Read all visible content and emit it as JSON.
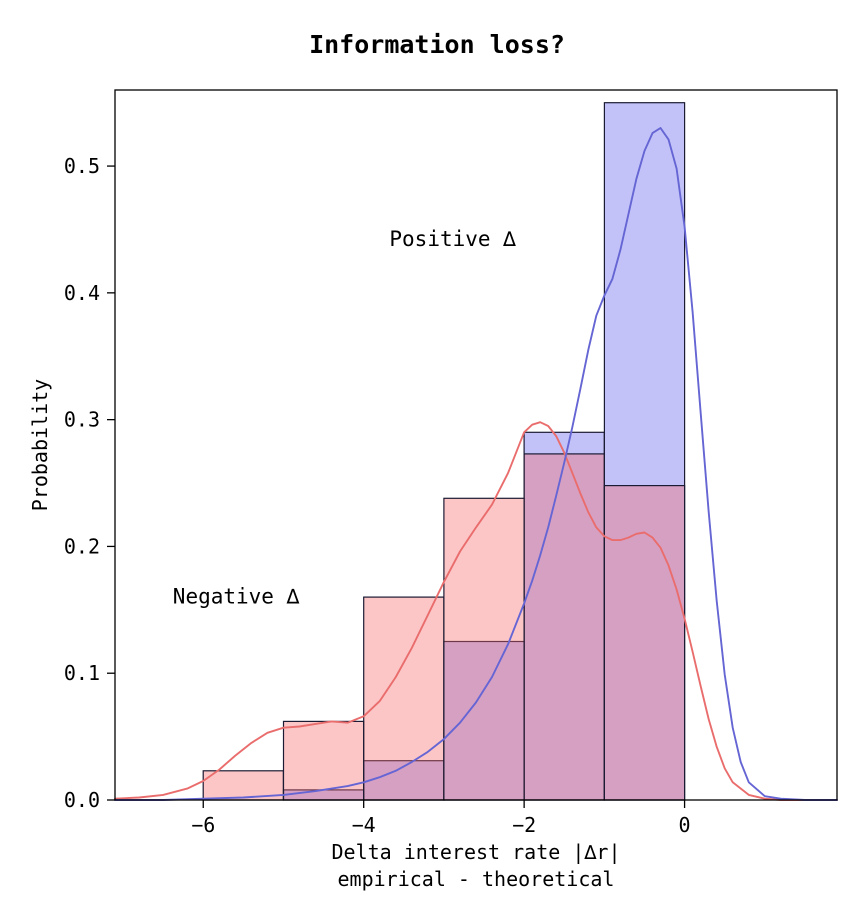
{
  "title": "Information loss?",
  "axes": {
    "ylabel": "Probability",
    "xlabel_line1": "Delta interest rate |∆r|",
    "xlabel_line2": "empirical - theoretical",
    "xlim": [
      -7.1,
      1.9
    ],
    "ylim": [
      0,
      0.56
    ],
    "xtick_values": [
      -6,
      -4,
      -2,
      0
    ],
    "xtick_labels": [
      "−6",
      "−4",
      "−2",
      "0"
    ],
    "ytick_values": [
      0.0,
      0.1,
      0.2,
      0.3,
      0.4,
      0.5
    ],
    "ytick_labels": [
      "0.0",
      "0.1",
      "0.2",
      "0.3",
      "0.4",
      "0.5"
    ],
    "spine_color": "#000000",
    "bar_edge_color": "#1b1b33"
  },
  "chart_data": {
    "type": "histogram+kde",
    "series": [
      {
        "id": "positive",
        "name": "Positive ∆",
        "bar_fill": "rgba(95,95,240,0.38)",
        "line_color": "#6565d4",
        "bin_edges": [
          -5,
          -4,
          -3,
          -2,
          -1,
          0
        ],
        "bin_values": [
          0.008,
          0.031,
          0.125,
          0.29,
          0.55
        ],
        "kde_x": [
          -7.1,
          -6.5,
          -6.0,
          -5.5,
          -5.0,
          -4.6,
          -4.2,
          -4.0,
          -3.8,
          -3.6,
          -3.4,
          -3.2,
          -3.0,
          -2.8,
          -2.6,
          -2.4,
          -2.2,
          -2.0,
          -1.9,
          -1.8,
          -1.7,
          -1.6,
          -1.5,
          -1.4,
          -1.3,
          -1.2,
          -1.1,
          -1.0,
          -0.9,
          -0.8,
          -0.7,
          -0.6,
          -0.5,
          -0.4,
          -0.3,
          -0.2,
          -0.1,
          0.0,
          0.1,
          0.2,
          0.3,
          0.4,
          0.5,
          0.6,
          0.7,
          0.8,
          1.0,
          1.2,
          1.5,
          1.9
        ],
        "kde_y": [
          0.0,
          0.0,
          0.001,
          0.002,
          0.004,
          0.007,
          0.011,
          0.014,
          0.018,
          0.023,
          0.03,
          0.038,
          0.048,
          0.061,
          0.077,
          0.097,
          0.123,
          0.155,
          0.173,
          0.193,
          0.215,
          0.24,
          0.266,
          0.294,
          0.324,
          0.355,
          0.382,
          0.398,
          0.411,
          0.434,
          0.462,
          0.49,
          0.512,
          0.526,
          0.53,
          0.521,
          0.498,
          0.452,
          0.385,
          0.306,
          0.228,
          0.157,
          0.099,
          0.057,
          0.03,
          0.014,
          0.003,
          0.001,
          0.0,
          0.0
        ]
      },
      {
        "id": "negative",
        "name": "Negative ∆",
        "bar_fill": "rgba(248,105,107,0.38)",
        "line_color": "#ea6d6d",
        "bin_edges": [
          -6,
          -5,
          -4,
          -3,
          -2,
          -1,
          0
        ],
        "bin_values": [
          0.023,
          0.062,
          0.16,
          0.238,
          0.273,
          0.248
        ],
        "kde_x": [
          -7.1,
          -6.8,
          -6.5,
          -6.2,
          -6.0,
          -5.8,
          -5.6,
          -5.4,
          -5.2,
          -5.0,
          -4.8,
          -4.6,
          -4.4,
          -4.2,
          -4.0,
          -3.8,
          -3.6,
          -3.4,
          -3.2,
          -3.0,
          -2.8,
          -2.6,
          -2.4,
          -2.2,
          -2.0,
          -1.9,
          -1.8,
          -1.7,
          -1.6,
          -1.5,
          -1.4,
          -1.3,
          -1.2,
          -1.1,
          -1.0,
          -0.9,
          -0.8,
          -0.7,
          -0.6,
          -0.5,
          -0.4,
          -0.3,
          -0.2,
          -0.1,
          0.0,
          0.1,
          0.2,
          0.3,
          0.4,
          0.5,
          0.6,
          0.8,
          1.0,
          1.2,
          1.5,
          1.9
        ],
        "kde_y": [
          0.001,
          0.002,
          0.004,
          0.009,
          0.015,
          0.024,
          0.035,
          0.045,
          0.053,
          0.057,
          0.058,
          0.06,
          0.062,
          0.061,
          0.066,
          0.078,
          0.097,
          0.12,
          0.146,
          0.172,
          0.196,
          0.215,
          0.233,
          0.258,
          0.29,
          0.296,
          0.298,
          0.295,
          0.287,
          0.274,
          0.258,
          0.242,
          0.227,
          0.215,
          0.208,
          0.205,
          0.205,
          0.207,
          0.21,
          0.211,
          0.207,
          0.199,
          0.185,
          0.166,
          0.143,
          0.117,
          0.09,
          0.064,
          0.042,
          0.025,
          0.014,
          0.004,
          0.001,
          0.0,
          0.0,
          0.0
        ]
      }
    ],
    "annotations": [
      {
        "id": "positive-delta",
        "text": "Positive ∆",
        "x": -3.68,
        "y": 0.437,
        "color": "#2b2bb5"
      },
      {
        "id": "negative-delta",
        "text": "Negative ∆",
        "x": -6.38,
        "y": 0.155,
        "color": "#9c1212"
      }
    ]
  }
}
